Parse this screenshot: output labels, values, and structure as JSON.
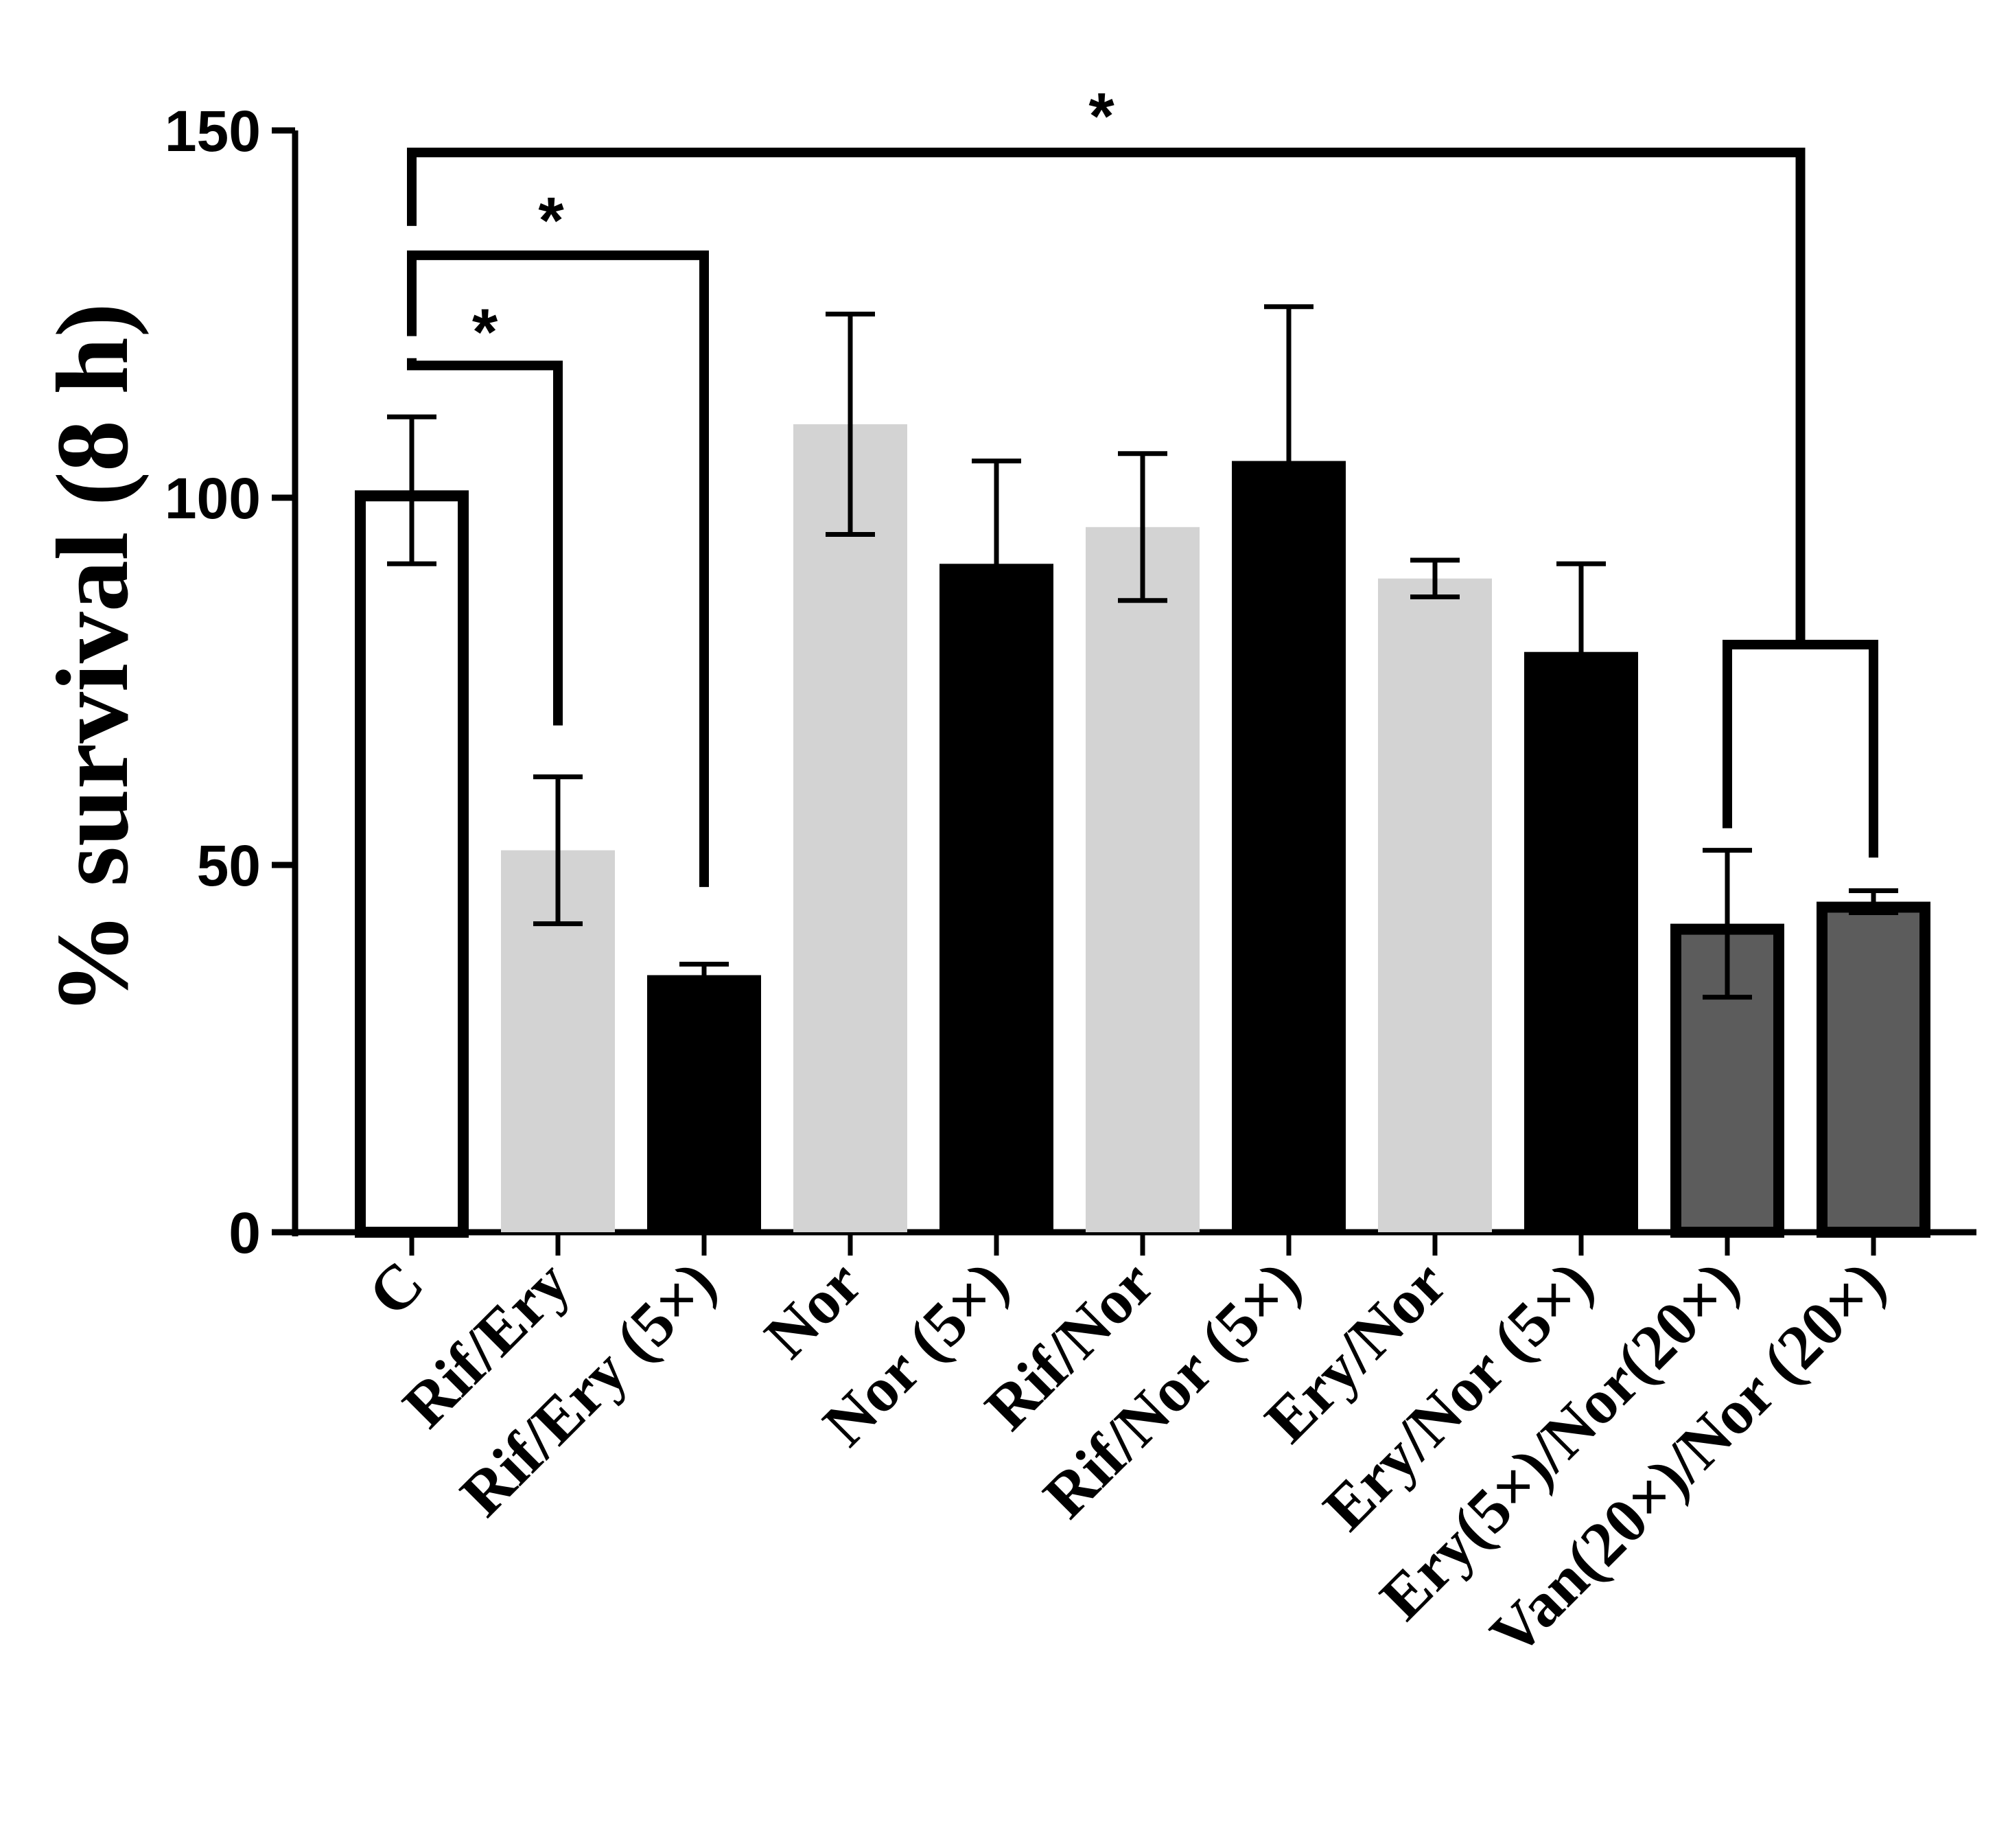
{
  "chart_data": {
    "type": "bar",
    "title": "",
    "xlabel": "",
    "ylabel": "% survival (8 h)",
    "ylim": [
      0,
      150
    ],
    "yticks": [
      0,
      50,
      100,
      150
    ],
    "yticks_labels": [
      "0",
      "50",
      "100",
      "150"
    ],
    "categories": [
      "C",
      "Rif/Ery",
      "Rif/Ery (5×)",
      "Nor",
      "Nor (5×)",
      "Rif/Nor",
      "Rif/Nor (5×)",
      "Ery/Nor",
      "Ery/Nor (5×)",
      "Ery(5×)/Nor(20×)",
      "Van(20×)/Nor (20×)"
    ],
    "values": [
      101,
      52,
      35,
      110,
      91,
      96,
      105,
      89,
      79,
      42,
      45
    ],
    "errors": [
      10,
      10,
      1.5,
      15,
      14,
      10,
      21,
      2.5,
      12,
      10,
      1.5
    ],
    "styles": [
      "outline",
      "light",
      "solid",
      "light",
      "solid",
      "light",
      "solid",
      "light",
      "solid",
      "dark-outline",
      "dark-outline"
    ],
    "colors": {
      "solid": "#000000",
      "light": "#d3d3d3",
      "dark_fill": "#5c5c5c",
      "outline_fill": "#ffffff"
    },
    "significance": [
      {
        "from": 0,
        "to": 1,
        "label": "*",
        "level": 118
      },
      {
        "from": 0,
        "to": 2,
        "label": "*",
        "level": 133
      },
      {
        "from": 0,
        "to": 9.5,
        "label": "*",
        "level": 147
      },
      {
        "from": 9,
        "to": 10,
        "label": "",
        "level": 80
      }
    ]
  }
}
